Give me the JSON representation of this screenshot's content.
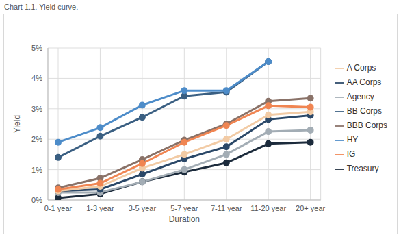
{
  "chart_data": {
    "type": "line",
    "title": "Chart 1.1. Yield curve.",
    "x_label": "Duration",
    "y_label": "Yield",
    "categories": [
      "0-1 year",
      "1-3 year",
      "3-5 year",
      "5-7 year",
      "7-11 year",
      "11-20 year",
      "20+ year"
    ],
    "series": [
      {
        "name": "Treasury",
        "color": "#1c2b3c",
        "values": [
          0.07,
          0.2,
          0.6,
          0.92,
          1.22,
          1.85,
          1.9
        ]
      },
      {
        "name": "Agency",
        "color": "#a3adb5",
        "values": [
          0.25,
          0.25,
          0.6,
          1.0,
          1.5,
          2.25,
          2.3
        ]
      },
      {
        "name": "AA Corps",
        "color": "#2b4868",
        "values": [
          0.3,
          0.35,
          0.85,
          1.35,
          1.75,
          2.65,
          2.78
        ]
      },
      {
        "name": "A Corps",
        "color": "#f2cba5",
        "values": [
          0.3,
          0.45,
          1.05,
          1.5,
          2.0,
          2.8,
          2.9
        ]
      },
      {
        "name": "BBB Corps",
        "color": "#8a7268",
        "values": [
          0.4,
          0.72,
          1.33,
          1.97,
          2.5,
          3.25,
          3.35
        ]
      },
      {
        "name": "IG",
        "color": "#f08552",
        "values": [
          0.35,
          0.55,
          1.2,
          1.9,
          2.45,
          3.1,
          3.05
        ]
      },
      {
        "name": "BB Corps",
        "color": "#3a5f82",
        "values": [
          1.4,
          2.1,
          2.72,
          3.42,
          3.55,
          4.55,
          null
        ]
      },
      {
        "name": "HY",
        "color": "#4d8cc9",
        "values": [
          1.9,
          2.38,
          3.12,
          3.6,
          3.6,
          4.55,
          null
        ]
      }
    ],
    "ylim": [
      0,
      5
    ],
    "yticks": [
      {
        "value": 0,
        "label": "0%"
      },
      {
        "value": 1,
        "label": "1%"
      },
      {
        "value": 2,
        "label": "2%"
      },
      {
        "value": 3,
        "label": "3%"
      },
      {
        "value": 4,
        "label": "4%"
      },
      {
        "value": 5,
        "label": "5%"
      }
    ],
    "grid": true,
    "legend": "right",
    "marker": "circle"
  }
}
